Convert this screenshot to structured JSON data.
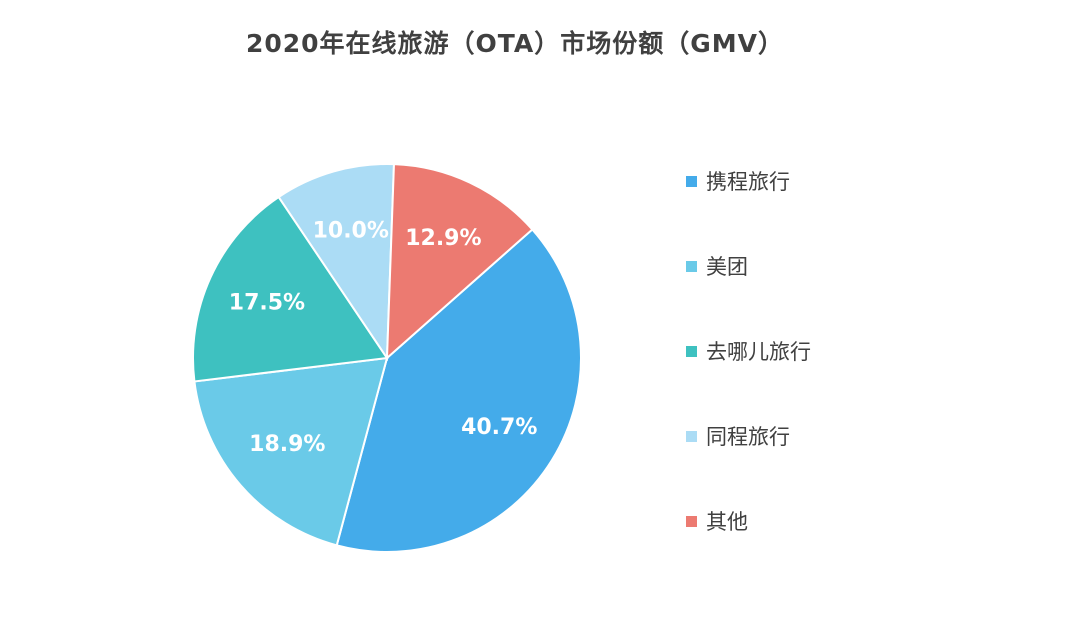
{
  "chart_data": {
    "type": "pie",
    "title": "2020年在线旅游（OTA）市场份额（GMV）",
    "legend_position": "right",
    "slices": [
      {
        "label": "携程旅行",
        "value": 40.7,
        "display": "40.7%",
        "color": "#44ABEA"
      },
      {
        "label": "美团",
        "value": 18.9,
        "display": "18.9%",
        "color": "#6ACAE8"
      },
      {
        "label": "去哪儿旅行",
        "value": 17.5,
        "display": "17.5%",
        "color": "#3EC1C0"
      },
      {
        "label": "同程旅行",
        "value": 10.0,
        "display": "10.0%",
        "color": "#ABDCF5"
      },
      {
        "label": "其他",
        "value": 12.9,
        "display": "12.9%",
        "color": "#EC7A71"
      }
    ]
  }
}
